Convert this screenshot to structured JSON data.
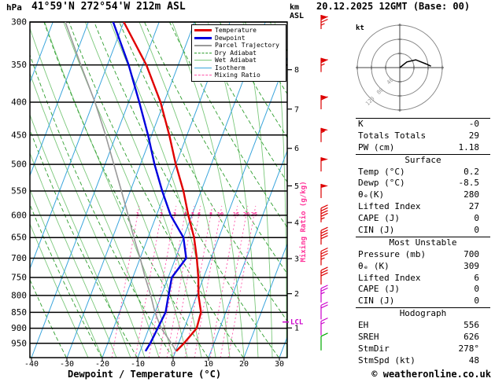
{
  "header": {
    "pressure_unit": "hPa",
    "title": "41°59'N 272°54'W 212m ASL",
    "datetime": "20.12.2025 12GMT (Base: 00)"
  },
  "footer": {
    "xlabel": "Dewpoint / Temperature (°C)",
    "copyright": "© weatheronline.co.uk"
  },
  "axes": {
    "pressure_ticks": [
      300,
      350,
      400,
      450,
      500,
      550,
      600,
      650,
      700,
      750,
      800,
      850,
      900,
      950
    ],
    "temp_ticks": [
      -40,
      -30,
      -20,
      -10,
      0,
      10,
      20,
      30
    ],
    "km_label": "km",
    "asl_label": "ASL",
    "km_ticks": [
      1,
      2,
      3,
      4,
      5,
      6,
      7,
      8
    ],
    "mixing_ratio_axis_label": "Mixing Ratio (g/kg)",
    "lcl_label": "LCL"
  },
  "legend": [
    {
      "label": "Temperature",
      "color": "#e00000",
      "width": 3,
      "dashed": false
    },
    {
      "label": "Dewpoint",
      "color": "#0000dd",
      "width": 3,
      "dashed": false
    },
    {
      "label": "Parcel Trajectory",
      "color": "#999999",
      "width": 2,
      "dashed": false
    },
    {
      "label": "Dry Adiabat",
      "color": "#2e9e2e",
      "width": 1,
      "dashed": true
    },
    {
      "label": "Wet Adiabat",
      "color": "#7cc87c",
      "width": 1,
      "dashed": false
    },
    {
      "label": "Isotherm",
      "color": "#3aa5dc",
      "width": 1,
      "dashed": false
    },
    {
      "label": "Mixing Ratio",
      "color": "#ff55aa",
      "width": 1,
      "dashed": true
    }
  ],
  "chart_data": {
    "type": "line",
    "diagram": "skew-t-log-p",
    "title": "41°59'N 272°54'W 212m ASL",
    "xlabel": "Dewpoint / Temperature (°C)",
    "ylabel": "hPa",
    "pressure_axis_hpa": [
      300,
      1000
    ],
    "temp_axis_c": [
      -40,
      30
    ],
    "sounding": {
      "pressure_hpa": [
        977,
        950,
        900,
        850,
        800,
        750,
        700,
        650,
        600,
        550,
        500,
        450,
        400,
        350,
        300
      ],
      "temperature_c": [
        0.2,
        1.5,
        3.5,
        3.0,
        0.5,
        -1.5,
        -4,
        -7,
        -11,
        -15,
        -20,
        -25,
        -31,
        -39,
        -50
      ],
      "dewpoint_c": [
        -8.5,
        -8,
        -7.5,
        -7,
        -8,
        -9,
        -7,
        -10,
        -16,
        -21,
        -26,
        -31,
        -37,
        -44,
        -53
      ],
      "parcel_c": [
        0.2,
        -2,
        -6.5,
        -10,
        -13,
        -16.5,
        -20,
        -24,
        -28,
        -32.5,
        -37.5,
        -43,
        -49.5,
        -57.5,
        -66.5
      ]
    },
    "mixing_ratio_lines_g_kg": [
      1,
      2,
      3,
      4,
      5,
      6,
      8,
      10,
      15,
      20,
      25
    ],
    "lcl_pressure_hpa": 880,
    "km_asl_pressures": {
      "1": 899,
      "2": 795,
      "3": 701,
      "4": 616,
      "5": 540,
      "6": 472,
      "7": 410,
      "8": 356
    },
    "wind_barbs": [
      {
        "p": 300,
        "kt": 75,
        "color": "#dd0000"
      },
      {
        "p": 350,
        "kt": 65,
        "color": "#dd0000"
      },
      {
        "p": 400,
        "kt": 60,
        "color": "#dd0000"
      },
      {
        "p": 450,
        "kt": 55,
        "color": "#dd0000"
      },
      {
        "p": 500,
        "kt": 50,
        "color": "#dd0000"
      },
      {
        "p": 550,
        "kt": 50,
        "color": "#dd0000"
      },
      {
        "p": 600,
        "kt": 45,
        "color": "#dd0000"
      },
      {
        "p": 650,
        "kt": 40,
        "color": "#dd0000"
      },
      {
        "p": 700,
        "kt": 35,
        "color": "#dd0000"
      },
      {
        "p": 750,
        "kt": 30,
        "color": "#dd0000"
      },
      {
        "p": 800,
        "kt": 25,
        "color": "#cc00cc"
      },
      {
        "p": 850,
        "kt": 20,
        "color": "#cc00cc"
      },
      {
        "p": 900,
        "kt": 15,
        "color": "#cc00cc"
      },
      {
        "p": 950,
        "kt": 10,
        "color": "#00aa00"
      }
    ]
  },
  "hodograph": {
    "unit_label": "kt",
    "rings_kt": [
      40,
      80,
      120
    ],
    "trace_uv_kt": [
      [
        0,
        0
      ],
      [
        20,
        16
      ],
      [
        45,
        22
      ],
      [
        75,
        10
      ],
      [
        88,
        4
      ]
    ]
  },
  "table": {
    "sections": [
      {
        "header": null,
        "rows": [
          [
            "K",
            "-0"
          ],
          [
            "Totals Totals",
            "29"
          ],
          [
            "PW (cm)",
            "1.18"
          ]
        ]
      },
      {
        "header": "Surface",
        "rows": [
          [
            "Temp (°C)",
            "0.2"
          ],
          [
            "Dewp (°C)",
            "-8.5"
          ],
          [
            "θₑ(K)",
            "280"
          ],
          [
            "Lifted Index",
            "27"
          ],
          [
            "CAPE (J)",
            "0"
          ],
          [
            "CIN (J)",
            "0"
          ]
        ]
      },
      {
        "header": "Most Unstable",
        "rows": [
          [
            "Pressure (mb)",
            "700"
          ],
          [
            "θₑ (K)",
            "309"
          ],
          [
            "Lifted Index",
            "6"
          ],
          [
            "CAPE (J)",
            "0"
          ],
          [
            "CIN (J)",
            "0"
          ]
        ]
      },
      {
        "header": "Hodograph",
        "rows": [
          [
            "EH",
            "556"
          ],
          [
            "SREH",
            "626"
          ],
          [
            "StmDir",
            "278°"
          ],
          [
            "StmSpd (kt)",
            "48"
          ]
        ]
      }
    ]
  }
}
